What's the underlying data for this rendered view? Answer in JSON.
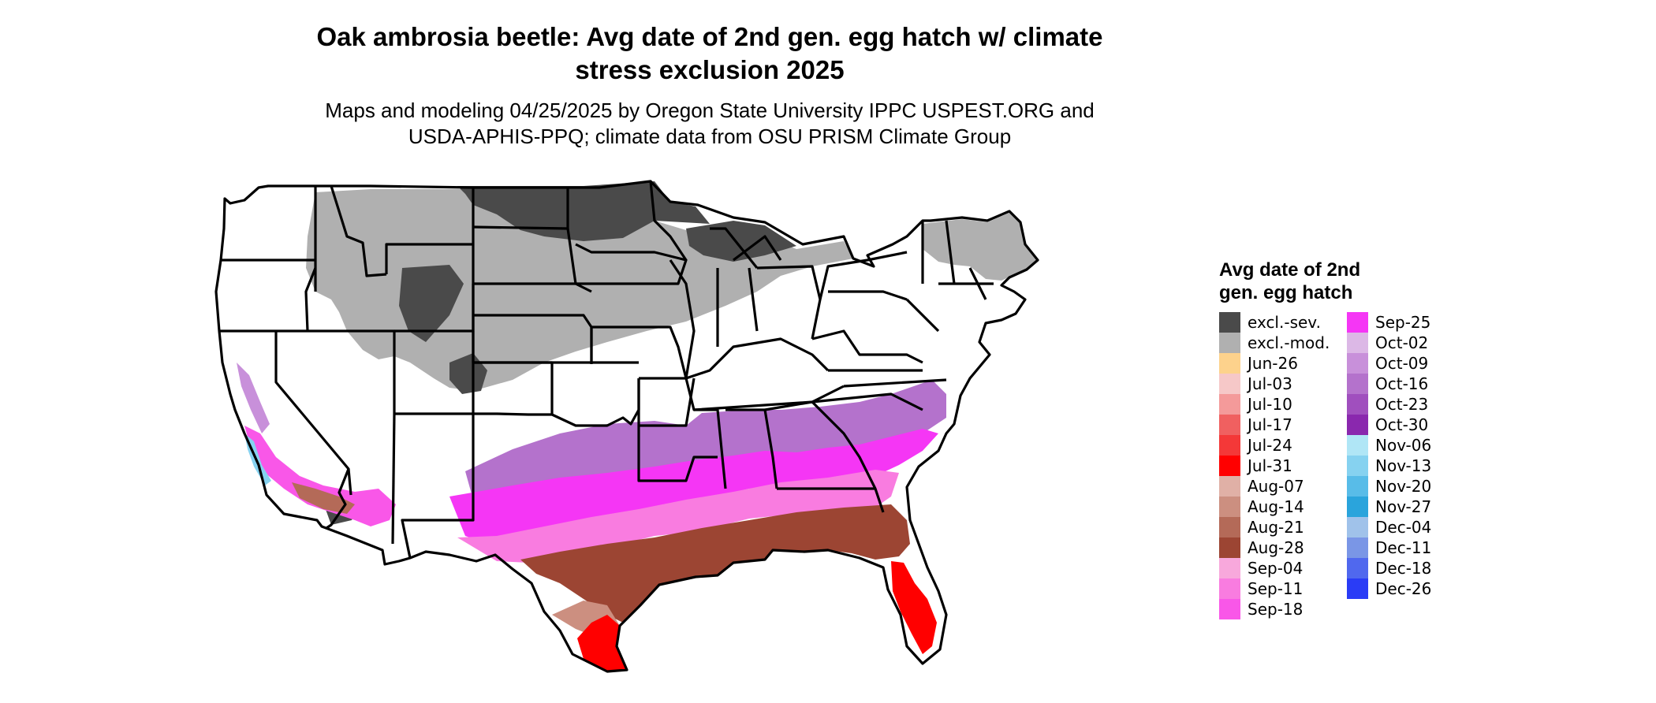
{
  "title_line1": "Oak ambrosia beetle: Avg date of 2nd gen. egg hatch w/ climate",
  "title_line2": "stress exclusion 2025",
  "subtitle_line1": "Maps and modeling 04/25/2025 by Oregon State University IPPC USPEST.ORG and",
  "subtitle_line2": "USDA-APHIS-PPQ; climate data from OSU PRISM Climate Group",
  "legend": {
    "title_line1": "Avg date of 2nd",
    "title_line2": "gen. egg hatch",
    "col1": [
      {
        "label": "excl.-sev.",
        "color": "#4a4a4a"
      },
      {
        "label": "excl.-mod.",
        "color": "#b0b0b0"
      },
      {
        "label": "Jun-26",
        "color": "#fdd28c"
      },
      {
        "label": "Jul-03",
        "color": "#f6c8c8"
      },
      {
        "label": "Jul-10",
        "color": "#f49a9a"
      },
      {
        "label": "Jul-17",
        "color": "#f06060"
      },
      {
        "label": "Jul-24",
        "color": "#f43838"
      },
      {
        "label": "Jul-31",
        "color": "#ff0000"
      },
      {
        "label": "Aug-07",
        "color": "#e0b0a6"
      },
      {
        "label": "Aug-14",
        "color": "#cc8f80"
      },
      {
        "label": "Aug-21",
        "color": "#b46a58"
      },
      {
        "label": "Aug-28",
        "color": "#9c4533"
      },
      {
        "label": "Sep-04",
        "color": "#f8a8dc"
      },
      {
        "label": "Sep-11",
        "color": "#f97ce0"
      },
      {
        "label": "Sep-18",
        "color": "#f957e8"
      }
    ],
    "col2": [
      {
        "label": "Sep-25",
        "color": "#f536f5"
      },
      {
        "label": "Oct-02",
        "color": "#dcb8e6"
      },
      {
        "label": "Oct-09",
        "color": "#c890da"
      },
      {
        "label": "Oct-16",
        "color": "#b472cc"
      },
      {
        "label": "Oct-23",
        "color": "#a04fbe"
      },
      {
        "label": "Oct-30",
        "color": "#8a28ae"
      },
      {
        "label": "Nov-06",
        "color": "#b0e6f6"
      },
      {
        "label": "Nov-13",
        "color": "#86d2f0"
      },
      {
        "label": "Nov-20",
        "color": "#58bce8"
      },
      {
        "label": "Nov-27",
        "color": "#2aa4dc"
      },
      {
        "label": "Dec-04",
        "color": "#a0c2ea"
      },
      {
        "label": "Dec-11",
        "color": "#7a96e6"
      },
      {
        "label": "Dec-18",
        "color": "#5068ee"
      },
      {
        "label": "Dec-26",
        "color": "#2a3cf6"
      }
    ]
  }
}
